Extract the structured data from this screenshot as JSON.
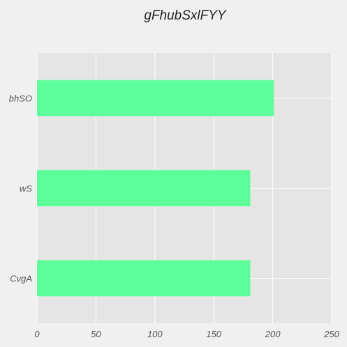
{
  "chart_data": {
    "type": "bar",
    "orientation": "horizontal",
    "title": "gFhubSxlFYY",
    "xlabel": "",
    "ylabel": "",
    "categories": [
      "CvgA",
      "wS",
      "bhSO"
    ],
    "values": [
      181,
      181,
      201
    ],
    "xlim": [
      0,
      250
    ],
    "xticks": [
      0,
      50,
      100,
      150,
      200,
      250
    ],
    "grid": true,
    "legend": "none",
    "colors": {
      "bar": "#5cff9a",
      "plot_background": "#e5e5e5",
      "page_background": "#f0f0f0",
      "grid": "#ffffff"
    }
  }
}
